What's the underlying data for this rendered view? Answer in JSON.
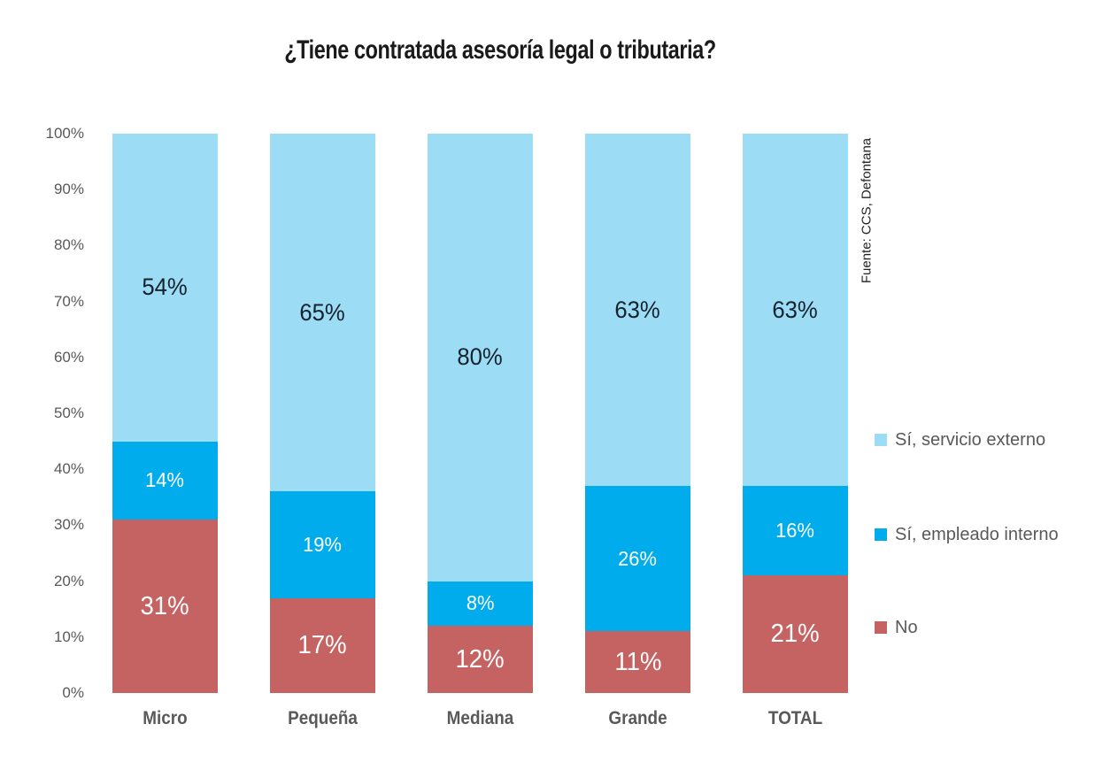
{
  "title": "¿Tiene contratada asesoría legal o tributaria?",
  "source": "Fuente:  CCS, Defontana",
  "chart_data": {
    "type": "bar",
    "subtype": "stacked-100-percent-column",
    "title": "¿Tiene contratada asesoría legal o tributaria?",
    "categories": [
      "Micro",
      "Pequeña",
      "Mediana",
      "Grande",
      "TOTAL"
    ],
    "series": [
      {
        "name": "Sí, servicio externo",
        "color": "#9CDCF5",
        "label_color": "#14222e",
        "values": [
          54,
          65,
          80,
          63,
          63
        ],
        "labels": [
          "54%",
          "65%",
          "80%",
          "63%",
          "63%"
        ]
      },
      {
        "name": "Sí, empleado interno",
        "color": "#00ACEC",
        "label_color": "#ffffff",
        "values": [
          14,
          19,
          8,
          26,
          16
        ],
        "labels": [
          "14%",
          "19%",
          "8%",
          "26%",
          "16%"
        ]
      },
      {
        "name": "No",
        "color": "#C46362",
        "label_color": "#ffffff",
        "values": [
          31,
          17,
          12,
          11,
          21
        ],
        "labels": [
          "31%",
          "17%",
          "12%",
          "11%",
          "21%"
        ]
      }
    ],
    "ylim": [
      0,
      100
    ],
    "yticks": [
      "100%",
      "90%",
      "80%",
      "70%",
      "60%",
      "50%",
      "40%",
      "30%",
      "20%",
      "10%",
      "0%"
    ],
    "grid": false,
    "legend_position": "right",
    "source": "Fuente:  CCS, Defontana",
    "colors": {
      "background": "#ffffff",
      "axis_text": "#595959",
      "category_text": "#595959",
      "legend_text": "#595959",
      "title_text": "#1a1a1a"
    }
  }
}
